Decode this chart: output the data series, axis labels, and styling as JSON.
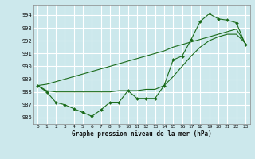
{
  "xlabel_label": "Graphe pression niveau de la mer (hPa)",
  "bg_color": "#cce8ec",
  "grid_color": "#ffffff",
  "line_color": "#1a6b1a",
  "ylim": [
    985.5,
    994.8
  ],
  "xlim": [
    -0.5,
    23.5
  ],
  "yticks": [
    986,
    987,
    988,
    989,
    990,
    991,
    992,
    993,
    994
  ],
  "xticks": [
    0,
    1,
    2,
    3,
    4,
    5,
    6,
    7,
    8,
    9,
    10,
    11,
    12,
    13,
    14,
    15,
    16,
    17,
    18,
    19,
    20,
    21,
    22,
    23
  ],
  "series_jagged": [
    988.5,
    988.0,
    987.2,
    987.0,
    986.7,
    986.4,
    986.1,
    986.6,
    987.2,
    987.2,
    988.1,
    987.5,
    987.5,
    987.5,
    988.5,
    990.5,
    990.8,
    992.1,
    993.5,
    994.1,
    993.7,
    993.6,
    993.4,
    991.7
  ],
  "series_smooth": [
    988.5,
    988.1,
    988.0,
    988.0,
    988.0,
    988.0,
    988.0,
    988.0,
    988.0,
    988.1,
    988.1,
    988.1,
    988.2,
    988.2,
    988.5,
    989.2,
    990.0,
    990.8,
    991.5,
    992.0,
    992.3,
    992.5,
    992.5,
    991.8
  ],
  "series_linear": [
    988.5,
    988.6,
    988.8,
    989.0,
    989.2,
    989.4,
    989.6,
    989.8,
    990.0,
    990.2,
    990.4,
    990.6,
    990.8,
    991.0,
    991.2,
    991.5,
    991.7,
    991.9,
    992.1,
    992.3,
    992.5,
    992.7,
    992.9,
    991.8
  ]
}
